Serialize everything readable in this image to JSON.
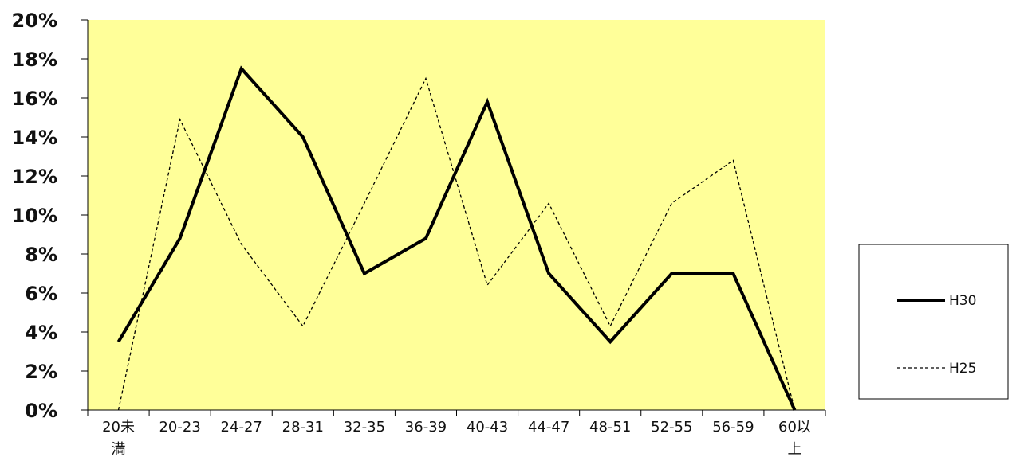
{
  "chart_data": {
    "type": "line",
    "categories": [
      "20未満",
      "20-23",
      "24-27",
      "28-31",
      "32-35",
      "36-39",
      "40-43",
      "44-47",
      "48-51",
      "52-55",
      "56-59",
      "60以上"
    ],
    "category_lines": [
      [
        "20未",
        "満"
      ],
      [
        "20-23"
      ],
      [
        "24-27"
      ],
      [
        "28-31"
      ],
      [
        "32-35"
      ],
      [
        "36-39"
      ],
      [
        "40-43"
      ],
      [
        "44-47"
      ],
      [
        "48-51"
      ],
      [
        "52-55"
      ],
      [
        "56-59"
      ],
      [
        "60以",
        "上"
      ]
    ],
    "series": [
      {
        "name": "H30",
        "values": [
          3.5,
          8.8,
          17.5,
          14.0,
          7.0,
          8.8,
          15.8,
          7.0,
          3.5,
          7.0,
          7.0,
          0.0
        ],
        "color": "#000000",
        "style": "solid"
      },
      {
        "name": "H25",
        "values": [
          0.0,
          14.9,
          8.5,
          4.3,
          10.6,
          17.0,
          6.4,
          10.6,
          4.3,
          10.6,
          12.8,
          0.0
        ],
        "color": "#000000",
        "style": "dashed"
      }
    ],
    "yticks": [
      "0%",
      "2%",
      "4%",
      "6%",
      "8%",
      "10%",
      "12%",
      "14%",
      "16%",
      "18%",
      "20%"
    ],
    "ylim": [
      0,
      20
    ],
    "plot_background": "#ffff99",
    "grid": false,
    "legend_position": "right"
  }
}
